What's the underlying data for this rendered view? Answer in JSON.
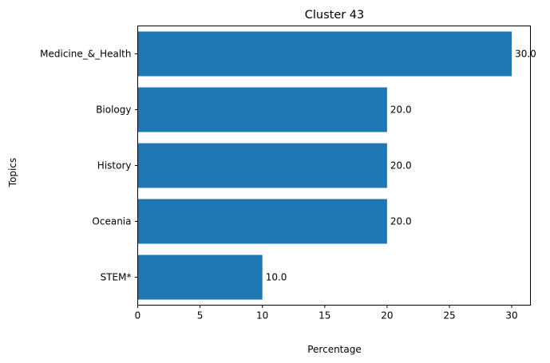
{
  "chart_data": {
    "type": "bar",
    "orientation": "horizontal",
    "title": "Cluster 43",
    "xlabel": "Percentage",
    "ylabel": "Topics",
    "categories": [
      "Medicine_&_Health",
      "Biology",
      "History",
      "Oceania",
      "STEM*"
    ],
    "values": [
      30.0,
      20.0,
      20.0,
      20.0,
      10.0
    ],
    "data_labels": [
      "30.0",
      "20.0",
      "20.0",
      "20.0",
      "10.0"
    ],
    "xlim": [
      0,
      31.5
    ],
    "xticks": [
      0,
      5,
      10,
      15,
      20,
      25,
      30
    ],
    "bar_color": "#1f77b4",
    "grid": false,
    "legend": "none"
  }
}
